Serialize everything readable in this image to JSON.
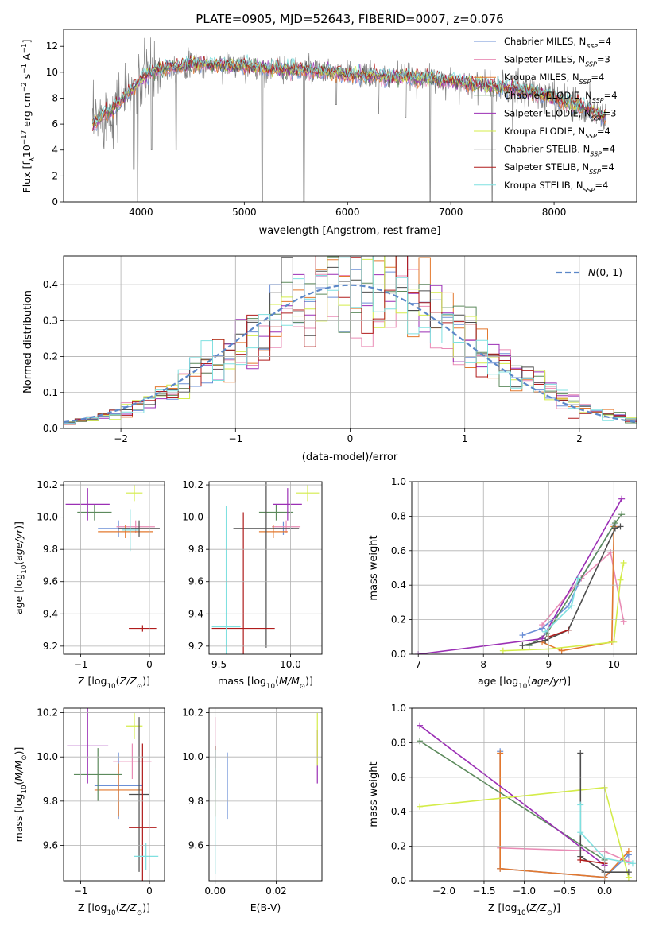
{
  "figure": {
    "title": "PLATE=0905, MJD=52643, FIBERID=0007, z=0.076"
  },
  "colors": {
    "chabrier_miles": "#6b8fd6",
    "salpeter_miles": "#e98bb5",
    "kroupa_miles": "#e3782e",
    "chabrier_elodie": "#5c8a5c",
    "salpeter_elodie": "#9b2fb5",
    "kroupa_elodie": "#d4ec4a",
    "chabrier_stelib": "#4d4d4d",
    "salpeter_stelib": "#b01c1c",
    "kroupa_stelib": "#7fe0e0",
    "normal_curve": "#5b87c8",
    "spectrum": "#7f7f7f"
  },
  "chart_data": [
    {
      "id": "spectrum",
      "type": "line",
      "xlabel": "wavelength [Angstrom, rest frame]",
      "ylabel": "Flux [f_λ 10^-17 erg cm^-2 s^-1 A^-1]",
      "xlim": [
        3250,
        8800
      ],
      "ylim": [
        0,
        13.3
      ],
      "xticks": [
        4000,
        5000,
        6000,
        7000,
        8000
      ],
      "yticks": [
        0,
        2,
        4,
        6,
        8,
        10,
        12
      ],
      "legend_loc": "right",
      "legend": [
        {
          "key": "chabrier_miles",
          "label": "Chabrier MILES, N",
          "sub": "SSP",
          "post": "=4"
        },
        {
          "key": "salpeter_miles",
          "label": "Salpeter MILES, N",
          "sub": "SSP",
          "post": "=3"
        },
        {
          "key": "kroupa_miles",
          "label": "Kroupa MILES, N",
          "sub": "SSP",
          "post": "=4"
        },
        {
          "key": "chabrier_elodie",
          "label": "Chabrier ELODIE, N",
          "sub": "SSP",
          "post": "=4"
        },
        {
          "key": "salpeter_elodie",
          "label": "Salpeter ELODIE, N",
          "sub": "SSP",
          "post": "=3"
        },
        {
          "key": "kroupa_elodie",
          "label": "Kroupa ELODIE, N",
          "sub": "SSP",
          "post": "=4"
        },
        {
          "key": "chabrier_stelib",
          "label": "Chabrier STELIB, N",
          "sub": "SSP",
          "post": "=4"
        },
        {
          "key": "salpeter_stelib",
          "label": "Salpeter STELIB, N",
          "sub": "SSP",
          "post": "=4"
        },
        {
          "key": "kroupa_stelib",
          "label": "Kroupa STELIB, N",
          "sub": "SSP",
          "post": "=4"
        }
      ],
      "continuum_model": [
        [
          3530,
          5.9
        ],
        [
          3600,
          6.5
        ],
        [
          3700,
          7.0
        ],
        [
          3800,
          7.8
        ],
        [
          3900,
          8.6
        ],
        [
          4000,
          9.4
        ],
        [
          4100,
          10.0
        ],
        [
          4300,
          10.4
        ],
        [
          4500,
          10.6
        ],
        [
          4700,
          10.6
        ],
        [
          5000,
          10.5
        ],
        [
          5200,
          10.3
        ],
        [
          5500,
          10.2
        ],
        [
          5800,
          10.0
        ],
        [
          6000,
          9.8
        ],
        [
          6300,
          9.7
        ],
        [
          6600,
          9.6
        ],
        [
          6800,
          9.5
        ],
        [
          7000,
          9.3
        ],
        [
          7200,
          9.1
        ],
        [
          7400,
          8.9
        ],
        [
          7600,
          8.7
        ],
        [
          7800,
          8.4
        ],
        [
          8000,
          8.0
        ],
        [
          8200,
          7.5
        ],
        [
          8500,
          6.6
        ]
      ],
      "observed_spikes": [
        [
          3930,
          2.5
        ],
        [
          3968,
          0
        ],
        [
          4102,
          4.0
        ],
        [
          4340,
          4.0
        ],
        [
          5175,
          0
        ],
        [
          5577,
          0
        ],
        [
          5890,
          7.5
        ],
        [
          6300,
          6.8
        ],
        [
          6563,
          6.5
        ],
        [
          6800,
          0
        ],
        [
          7400,
          0
        ],
        [
          7600,
          5.5
        ],
        [
          8400,
          6.5
        ]
      ]
    },
    {
      "id": "residuals",
      "type": "step",
      "xlabel": "(data-model)/error",
      "ylabel": "Normed distribution",
      "xlim": [
        -2.5,
        2.5
      ],
      "ylim": [
        0,
        0.48
      ],
      "xticks": [
        -2,
        -1,
        0,
        1,
        2
      ],
      "yticks": [
        0.0,
        0.1,
        0.2,
        0.3,
        0.4
      ],
      "bin_width": 0.1,
      "normal_label": "N(0,1)",
      "legend_loc": "upper right"
    },
    {
      "id": "age_vs_Z",
      "type": "errorbar",
      "xlabel": "Z [log10(Z/Z⊙)]",
      "ylabel": "age  [log10(age/yr)]",
      "xlim": [
        -1.25,
        0.22
      ],
      "ylim": [
        9.15,
        10.22
      ],
      "xticks": [
        -1,
        0
      ],
      "yticks": [
        9.2,
        9.4,
        9.6,
        9.8,
        10.0,
        10.2
      ],
      "points": [
        {
          "key": "chabrier_miles",
          "x": -0.45,
          "y": 9.93,
          "xerr": 0.3,
          "yerr": 0.05
        },
        {
          "key": "salpeter_miles",
          "x": -0.2,
          "y": 9.94,
          "xerr": 0.28,
          "yerr": 0.04
        },
        {
          "key": "kroupa_miles",
          "x": -0.35,
          "y": 9.91,
          "xerr": 0.4,
          "yerr": 0.04
        },
        {
          "key": "chabrier_elodie",
          "x": -0.8,
          "y": 10.03,
          "xerr": 0.25,
          "yerr": 0.05
        },
        {
          "key": "salpeter_elodie",
          "x": -0.9,
          "y": 10.08,
          "xerr": 0.32,
          "yerr": 0.1
        },
        {
          "key": "kroupa_elodie",
          "x": -0.22,
          "y": 10.15,
          "xerr": 0.12,
          "yerr": 0.05
        },
        {
          "key": "chabrier_stelib",
          "x": -0.15,
          "y": 9.93,
          "xerr": 0.3,
          "yerr": 0.05
        },
        {
          "key": "salpeter_stelib",
          "x": -0.1,
          "y": 9.31,
          "xerr": 0.2,
          "yerr": 0.02
        },
        {
          "key": "kroupa_stelib",
          "x": -0.28,
          "y": 9.92,
          "xerr": 0.12,
          "yerr": 0.13
        }
      ]
    },
    {
      "id": "age_vs_mass",
      "type": "errorbar",
      "xlabel": "mass [log10(M/M⊙)]",
      "ylabel": "",
      "xlim": [
        9.43,
        10.22
      ],
      "ylim": [
        9.15,
        10.22
      ],
      "xticks": [
        9.5,
        10.0
      ],
      "yticks": [
        9.2,
        9.4,
        9.6,
        9.8,
        10.0,
        10.2
      ],
      "points": [
        {
          "key": "chabrier_miles",
          "x": 9.95,
          "y": 9.93,
          "xerr": 0.07,
          "yerr": 0.04
        },
        {
          "key": "salpeter_miles",
          "x": 9.97,
          "y": 9.94,
          "xerr": 0.1,
          "yerr": 0.04
        },
        {
          "key": "kroupa_miles",
          "x": 9.88,
          "y": 9.91,
          "xerr": 0.1,
          "yerr": 0.04
        },
        {
          "key": "chabrier_elodie",
          "x": 9.9,
          "y": 10.03,
          "xerr": 0.12,
          "yerr": 0.05
        },
        {
          "key": "salpeter_elodie",
          "x": 9.98,
          "y": 10.08,
          "xerr": 0.1,
          "yerr": 0.1
        },
        {
          "key": "kroupa_elodie",
          "x": 10.12,
          "y": 10.15,
          "xerr": 0.08,
          "yerr": 0.05
        },
        {
          "key": "chabrier_stelib",
          "x": 9.83,
          "y": 9.93,
          "xerr": 0.23,
          "yerr": 0.74
        },
        {
          "key": "salpeter_stelib",
          "x": 9.67,
          "y": 9.31,
          "xerr": 0.22,
          "yerr": 0.72
        },
        {
          "key": "kroupa_stelib",
          "x": 9.55,
          "y": 9.32,
          "xerr": 0.1,
          "yerr": 0.75
        }
      ]
    },
    {
      "id": "weight_vs_age",
      "type": "line",
      "xlabel": "age  [log10(age/yr)]",
      "ylabel": "mass weight",
      "xlim": [
        6.9,
        10.35
      ],
      "ylim": [
        0,
        1.0
      ],
      "xticks": [
        7,
        8,
        9,
        10
      ],
      "yticks": [
        0.0,
        0.2,
        0.4,
        0.6,
        0.8,
        1.0
      ],
      "series": [
        {
          "key": "chabrier_miles",
          "x": [
            8.6,
            8.9,
            9.3,
            9.5,
            10.0
          ],
          "y": [
            0.11,
            0.15,
            0.28,
            0.44,
            0.75
          ]
        },
        {
          "key": "salpeter_miles",
          "x": [
            8.9,
            9.5,
            9.95,
            10.15
          ],
          "y": [
            0.17,
            0.44,
            0.59,
            0.19
          ]
        },
        {
          "key": "kroupa_miles",
          "x": [
            8.9,
            9.2,
            9.97,
            10.0
          ],
          "y": [
            0.07,
            0.02,
            0.07,
            0.74
          ]
        },
        {
          "key": "chabrier_elodie",
          "x": [
            8.7,
            8.97,
            10.02,
            10.12
          ],
          "y": [
            0.05,
            0.12,
            0.76,
            0.81
          ]
        },
        {
          "key": "salpeter_elodie",
          "x": [
            7.0,
            8.9,
            10.12
          ],
          "y": [
            0.0,
            0.09,
            0.9
          ]
        },
        {
          "key": "kroupa_elodie",
          "x": [
            8.3,
            9.0,
            10.0,
            10.1,
            10.15
          ],
          "y": [
            0.02,
            0.03,
            0.07,
            0.43,
            0.53
          ]
        },
        {
          "key": "chabrier_stelib",
          "x": [
            8.6,
            8.95,
            9.3,
            10.02,
            10.1
          ],
          "y": [
            0.05,
            0.08,
            0.14,
            0.73,
            0.74
          ]
        },
        {
          "key": "salpeter_stelib",
          "x": [
            9.0,
            9.3
          ],
          "y": [
            0.1,
            0.14
          ]
        },
        {
          "key": "kroupa_stelib",
          "x": [
            8.95,
            9.35,
            9.45
          ],
          "y": [
            0.13,
            0.28,
            0.44
          ]
        }
      ]
    },
    {
      "id": "mass_vs_Z",
      "type": "errorbar",
      "xlabel": "Z [log10(Z/Z⊙)]",
      "ylabel": "mass [log10(M/M⊙)]",
      "xlim": [
        -1.25,
        0.22
      ],
      "ylim": [
        9.44,
        10.22
      ],
      "xticks": [
        -1,
        0
      ],
      "yticks": [
        9.6,
        9.8,
        10.0,
        10.2
      ],
      "points": [
        {
          "key": "chabrier_miles",
          "x": -0.45,
          "y": 9.87,
          "xerr": 0.35,
          "yerr": 0.15
        },
        {
          "key": "salpeter_miles",
          "x": -0.25,
          "y": 9.98,
          "xerr": 0.28,
          "yerr": 0.08
        },
        {
          "key": "kroupa_miles",
          "x": -0.45,
          "y": 9.85,
          "xerr": 0.35,
          "yerr": 0.12
        },
        {
          "key": "chabrier_elodie",
          "x": -0.75,
          "y": 9.92,
          "xerr": 0.35,
          "yerr": 0.12
        },
        {
          "key": "salpeter_elodie",
          "x": -0.9,
          "y": 10.05,
          "xerr": 0.3,
          "yerr": 0.17
        },
        {
          "key": "kroupa_elodie",
          "x": -0.22,
          "y": 10.14,
          "xerr": 0.12,
          "yerr": 0.06
        },
        {
          "key": "chabrier_stelib",
          "x": -0.15,
          "y": 9.83,
          "xerr": 0.15,
          "yerr": 0.35
        },
        {
          "key": "salpeter_stelib",
          "x": -0.1,
          "y": 9.68,
          "xerr": 0.2,
          "yerr": 0.38
        },
        {
          "key": "kroupa_stelib",
          "x": -0.05,
          "y": 9.55,
          "xerr": 0.18,
          "yerr": 0.06
        }
      ]
    },
    {
      "id": "mass_vs_ebv",
      "type": "errorbar",
      "xlabel": "E(B-V)",
      "ylabel": "",
      "xlim": [
        -0.002,
        0.035
      ],
      "ylim": [
        9.44,
        10.22
      ],
      "xticks": [
        0.0,
        0.02
      ],
      "yticks": [
        9.6,
        9.8,
        10.0,
        10.2
      ],
      "points": [
        {
          "key": "chabrier_miles",
          "x": 0.004,
          "y": 9.87,
          "xerr": 0.0,
          "yerr": 0.15
        },
        {
          "key": "salpeter_miles",
          "x": 0.0,
          "y": 10.1,
          "xerr": 0.0,
          "yerr": 0.08
        },
        {
          "key": "kroupa_miles",
          "x": 0.0,
          "y": 9.85,
          "xerr": 0.0,
          "yerr": 0.12
        },
        {
          "key": "chabrier_elodie",
          "x": 0.0,
          "y": 9.95,
          "xerr": 0.0,
          "yerr": 0.1
        },
        {
          "key": "salpeter_elodie",
          "x": 0.0335,
          "y": 10.0,
          "xerr": 0.0,
          "yerr": 0.12
        },
        {
          "key": "kroupa_elodie",
          "x": 0.0335,
          "y": 10.08,
          "xerr": 0.0,
          "yerr": 0.12
        },
        {
          "key": "chabrier_stelib",
          "x": 0.0,
          "y": 9.95,
          "xerr": 0.0,
          "yerr": 0.1
        },
        {
          "key": "salpeter_stelib",
          "x": 0.0,
          "y": 10.0,
          "xerr": 0.0,
          "yerr": 0.05
        },
        {
          "key": "kroupa_stelib",
          "x": 0.0,
          "y": 9.75,
          "xerr": 0.0,
          "yerr": 0.28
        }
      ]
    },
    {
      "id": "weight_vs_Z",
      "type": "line",
      "xlabel": "Z [log10(Z/Z⊙)]",
      "ylabel": "mass weight",
      "xlim": [
        -2.4,
        0.4
      ],
      "ylim": [
        0,
        1.0
      ],
      "xticks": [
        -2.0,
        -1.5,
        -1.0,
        -0.5,
        0.0
      ],
      "yticks": [
        0.0,
        0.2,
        0.4,
        0.6,
        0.8,
        1.0
      ],
      "series": [
        {
          "key": "chabrier_miles",
          "x": [
            -1.3,
            -1.3,
            0.0,
            0.3
          ],
          "y": [
            0.75,
            0.07,
            0.02,
            0.15
          ]
        },
        {
          "key": "salpeter_miles",
          "x": [
            -1.3,
            0.0,
            0.3
          ],
          "y": [
            0.19,
            0.17,
            0.11
          ]
        },
        {
          "key": "kroupa_miles",
          "x": [
            -1.3,
            -1.3,
            0.0,
            0.3
          ],
          "y": [
            0.74,
            0.07,
            0.02,
            0.17
          ]
        },
        {
          "key": "chabrier_elodie",
          "x": [
            -2.3,
            0.0
          ],
          "y": [
            0.81,
            0.12
          ]
        },
        {
          "key": "salpeter_elodie",
          "x": [
            -2.3,
            0.0
          ],
          "y": [
            0.9,
            0.09
          ]
        },
        {
          "key": "kroupa_elodie",
          "x": [
            -2.3,
            0.0,
            0.3
          ],
          "y": [
            0.43,
            0.54,
            0.02
          ]
        },
        {
          "key": "chabrier_stelib",
          "x": [
            -0.3,
            -0.3,
            0.0,
            0.3
          ],
          "y": [
            0.74,
            0.14,
            0.05,
            0.05
          ]
        },
        {
          "key": "salpeter_stelib",
          "x": [
            -0.3,
            0.0
          ],
          "y": [
            0.12,
            0.1
          ]
        },
        {
          "key": "kroupa_stelib",
          "x": [
            -0.3,
            -0.3,
            0.0,
            0.35
          ],
          "y": [
            0.44,
            0.28,
            0.13,
            0.1
          ]
        }
      ]
    }
  ]
}
